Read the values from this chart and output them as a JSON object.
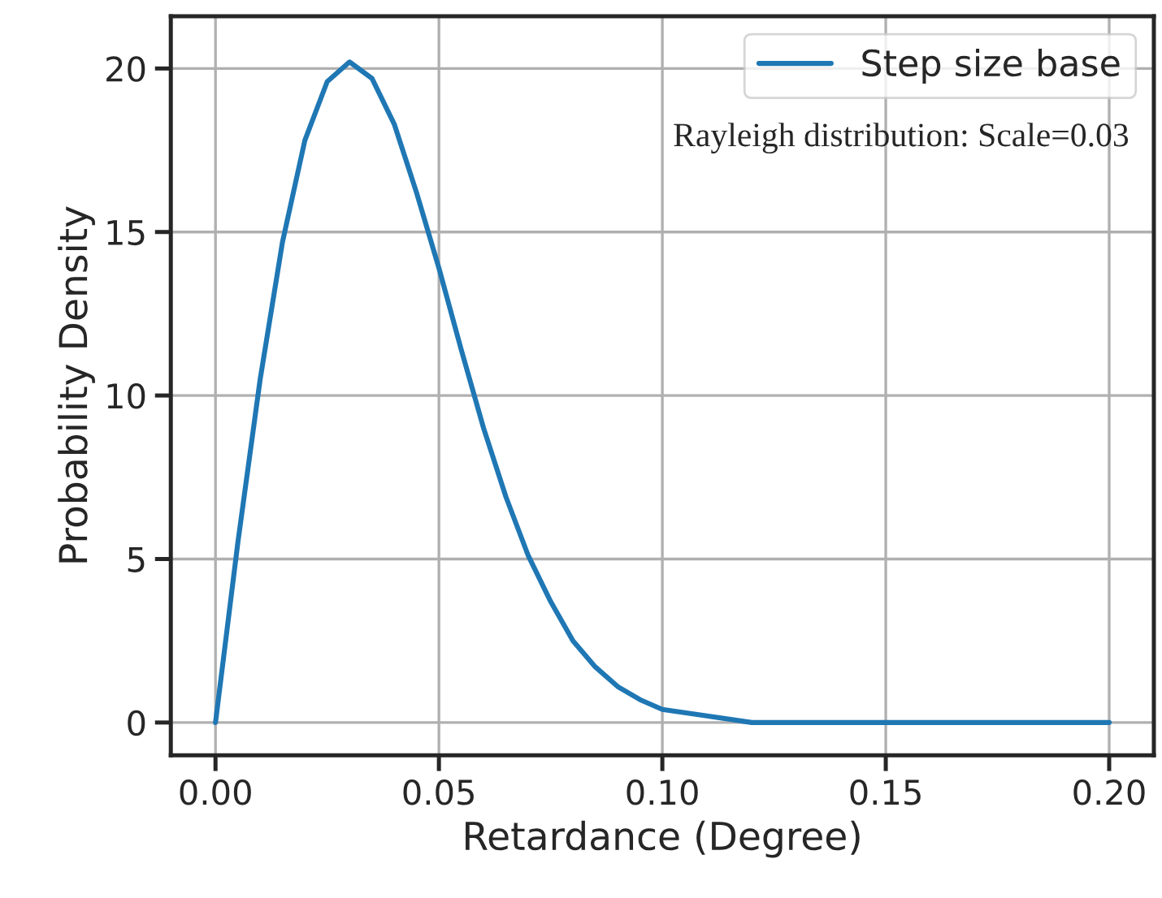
{
  "chart_data": {
    "type": "line",
    "xlabel": "Retardance (Degree)",
    "ylabel": "Probability Density",
    "x": [
      0,
      0.005,
      0.01,
      0.015,
      0.02,
      0.025,
      0.03,
      0.035,
      0.04,
      0.045,
      0.05,
      0.055,
      0.06,
      0.065,
      0.07,
      0.075,
      0.08,
      0.085,
      0.09,
      0.095,
      0.1,
      0.11,
      0.12,
      0.13,
      0.15,
      0.2
    ],
    "series": [
      {
        "name": "Step size base",
        "color": "#1f77b4",
        "values": [
          0,
          5.5,
          10.5,
          14.7,
          17.8,
          19.6,
          20.2,
          19.7,
          18.3,
          16.2,
          13.9,
          11.4,
          9.0,
          6.9,
          5.1,
          3.7,
          2.5,
          1.7,
          1.1,
          0.7,
          0.4,
          0.2,
          0.0,
          0.0,
          0.0,
          0.0
        ]
      }
    ],
    "xlim": [
      -0.01,
      0.21
    ],
    "ylim": [
      -1.0,
      21.6
    ],
    "xticks": [
      {
        "value": 0,
        "label": "0.00"
      },
      {
        "value": 0.05,
        "label": "0.05"
      },
      {
        "value": 0.1,
        "label": "0.10"
      },
      {
        "value": 0.15,
        "label": "0.15"
      },
      {
        "value": 0.2,
        "label": "0.20"
      }
    ],
    "yticks": [
      0,
      5,
      10,
      15,
      20
    ],
    "annotations": [
      "Rayleigh distribution: Scale=0.03"
    ],
    "grid": true,
    "legend": "top right",
    "marker": "none",
    "line_style": "solid"
  }
}
